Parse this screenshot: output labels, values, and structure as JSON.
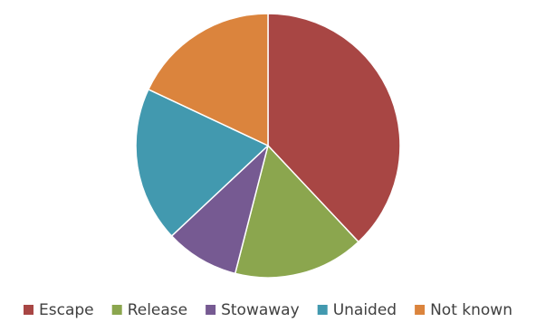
{
  "chart_data": {
    "type": "pie",
    "title": "",
    "start_angle_deg": 0,
    "direction": "clockwise",
    "legend_position": "bottom",
    "slices": [
      {
        "label": "Escape",
        "value": 38,
        "color": "#A84644"
      },
      {
        "label": "Release",
        "value": 16,
        "color": "#8BA64E"
      },
      {
        "label": "Stowaway",
        "value": 9,
        "color": "#765A92"
      },
      {
        "label": "Unaided",
        "value": 19,
        "color": "#4299AF"
      },
      {
        "label": "Not known",
        "value": 18,
        "color": "#DB843D"
      }
    ]
  }
}
